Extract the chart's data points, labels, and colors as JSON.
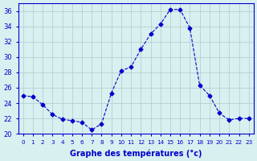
{
  "hours": [
    0,
    1,
    2,
    3,
    4,
    5,
    6,
    7,
    8,
    9,
    10,
    11,
    12,
    13,
    14,
    15,
    16,
    17,
    18,
    19,
    20,
    21,
    22,
    23
  ],
  "temps": [
    25.0,
    24.8,
    23.8,
    22.5,
    21.9,
    21.7,
    21.5,
    20.5,
    21.3,
    25.3,
    28.2,
    28.7,
    31.0,
    33.0,
    34.3,
    36.2,
    36.2,
    33.8,
    26.3,
    25.0,
    22.7,
    21.8,
    22.0,
    22.0
  ],
  "line_color": "#0000cc",
  "marker": "D",
  "marker_size": 2.5,
  "line_width": 0.8,
  "bg_color": "#d9f0f0",
  "grid_color": "#aacccc",
  "xlabel": "Graphe des températures (°c)",
  "xlabel_color": "#0000cc",
  "tick_color": "#0000cc",
  "ylim": [
    20,
    37
  ],
  "yticks": [
    20,
    22,
    24,
    26,
    28,
    30,
    32,
    34,
    36
  ],
  "xlim": [
    -0.5,
    23.5
  ],
  "xticks": [
    0,
    1,
    2,
    3,
    4,
    5,
    6,
    7,
    8,
    9,
    10,
    11,
    12,
    13,
    14,
    15,
    16,
    17,
    18,
    19,
    20,
    21,
    22,
    23
  ],
  "xtick_labels": [
    "0",
    "1",
    "2",
    "3",
    "4",
    "5",
    "6",
    "7",
    "8",
    "9",
    "10",
    "11",
    "12",
    "13",
    "14",
    "15",
    "16",
    "17",
    "18",
    "19",
    "20",
    "21",
    "22",
    "23"
  ]
}
